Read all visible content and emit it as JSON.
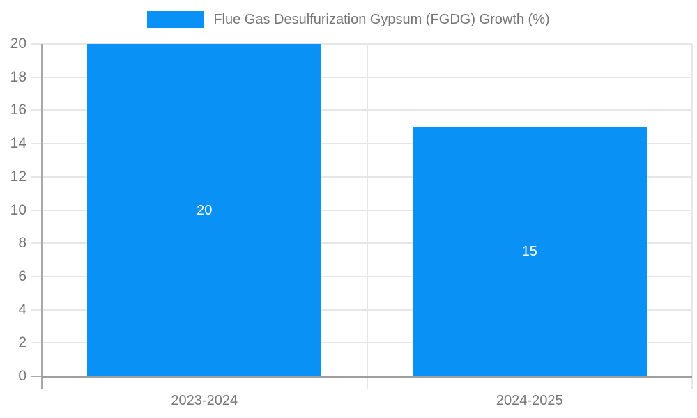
{
  "chart_data": {
    "type": "bar",
    "title": "Flue Gas Desulfurization Gypsum (FGDG) Growth (%)",
    "categories": [
      "2023-2024",
      "2024-2025"
    ],
    "values": [
      20,
      15
    ],
    "bar_value_labels": [
      "20",
      "15"
    ],
    "xlabel": "",
    "ylabel": "",
    "ylim": [
      0,
      20
    ],
    "yticks": [
      0,
      2,
      4,
      6,
      8,
      10,
      12,
      14,
      16,
      18,
      20
    ],
    "grid": true,
    "legend": {
      "position": "top",
      "entries": [
        "Flue Gas Desulfurization Gypsum (FGDG) Growth (%)"
      ]
    },
    "colors": {
      "bar": "#0991f5",
      "bar_value_label": "#ffffff",
      "axis_text": "#757575",
      "gridline": "#e6e6e6",
      "tick": "#d9d9d9",
      "y_axis_line": "#a8a8a8",
      "x_axis_line": "#9e9e9e",
      "background": "#ffffff"
    }
  }
}
